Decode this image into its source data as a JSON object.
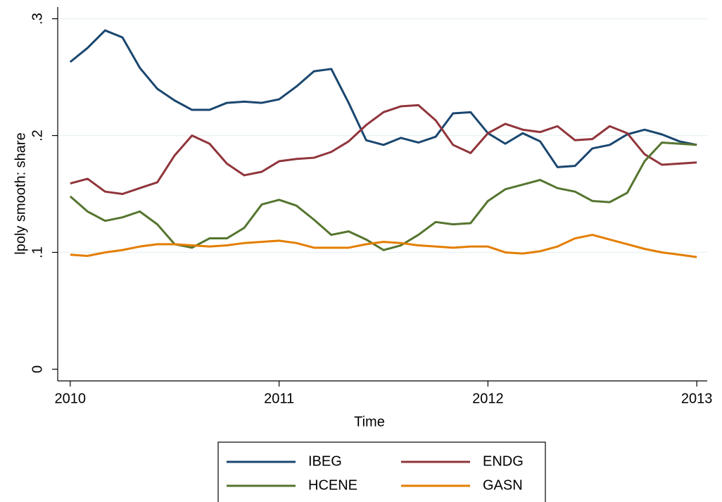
{
  "chart_data": {
    "type": "line",
    "y_label": "lpoly smooth: share",
    "x_label": "Time",
    "x": [
      2010,
      2010.083,
      2010.167,
      2010.25,
      2010.333,
      2010.417,
      2010.5,
      2010.583,
      2010.667,
      2010.75,
      2010.833,
      2010.917,
      2011,
      2011.083,
      2011.167,
      2011.25,
      2011.333,
      2011.417,
      2011.5,
      2011.583,
      2011.667,
      2011.75,
      2011.833,
      2011.917,
      2012,
      2012.083,
      2012.167,
      2012.25,
      2012.333,
      2012.417,
      2012.5,
      2012.583,
      2012.667,
      2012.75,
      2012.833,
      2012.917,
      2013
    ],
    "series": [
      {
        "name": "IBEG",
        "color": "#1a476f",
        "values": [
          0.263,
          0.275,
          0.29,
          0.284,
          0.258,
          0.24,
          0.23,
          0.222,
          0.222,
          0.228,
          0.229,
          0.228,
          0.231,
          0.242,
          0.255,
          0.257,
          0.228,
          0.196,
          0.192,
          0.198,
          0.194,
          0.199,
          0.219,
          0.22,
          0.202,
          0.193,
          0.202,
          0.195,
          0.173,
          0.174,
          0.189,
          0.192,
          0.201,
          0.205,
          0.201,
          0.195,
          0.192
        ]
      },
      {
        "name": "ENDG",
        "color": "#90353b",
        "values": [
          0.159,
          0.163,
          0.152,
          0.15,
          0.155,
          0.16,
          0.183,
          0.2,
          0.193,
          0.176,
          0.166,
          0.169,
          0.178,
          0.18,
          0.181,
          0.186,
          0.195,
          0.209,
          0.22,
          0.225,
          0.226,
          0.213,
          0.192,
          0.185,
          0.202,
          0.21,
          0.205,
          0.203,
          0.208,
          0.196,
          0.197,
          0.208,
          0.202,
          0.184,
          0.175,
          0.176,
          0.177
        ]
      },
      {
        "name": "HCENE",
        "color": "#55752f",
        "values": [
          0.148,
          0.135,
          0.127,
          0.13,
          0.135,
          0.124,
          0.107,
          0.104,
          0.112,
          0.112,
          0.121,
          0.141,
          0.145,
          0.14,
          0.128,
          0.115,
          0.118,
          0.111,
          0.102,
          0.106,
          0.115,
          0.126,
          0.124,
          0.125,
          0.144,
          0.154,
          0.158,
          0.162,
          0.155,
          0.152,
          0.144,
          0.143,
          0.151,
          0.178,
          0.194,
          0.193,
          0.192
        ]
      },
      {
        "name": "GASN",
        "color": "#e37e00",
        "values": [
          0.098,
          0.097,
          0.1,
          0.102,
          0.105,
          0.107,
          0.107,
          0.106,
          0.105,
          0.106,
          0.108,
          0.109,
          0.11,
          0.108,
          0.104,
          0.104,
          0.104,
          0.107,
          0.109,
          0.108,
          0.106,
          0.105,
          0.104,
          0.105,
          0.105,
          0.1,
          0.099,
          0.101,
          0.105,
          0.112,
          0.115,
          0.111,
          0.107,
          0.103,
          0.1,
          0.098,
          0.096
        ]
      }
    ],
    "xlim": [
      2009.94,
      2013.05
    ],
    "xticks": [
      2010,
      2011,
      2012,
      2013
    ],
    "ylim": [
      -0.01,
      0.31
    ],
    "yticks": [
      0,
      {
        "value": 0.1,
        "label": ".1"
      },
      {
        "value": 0.2,
        "label": ".2"
      },
      {
        "value": 0.3,
        "label": ".3"
      }
    ],
    "grid": true
  }
}
